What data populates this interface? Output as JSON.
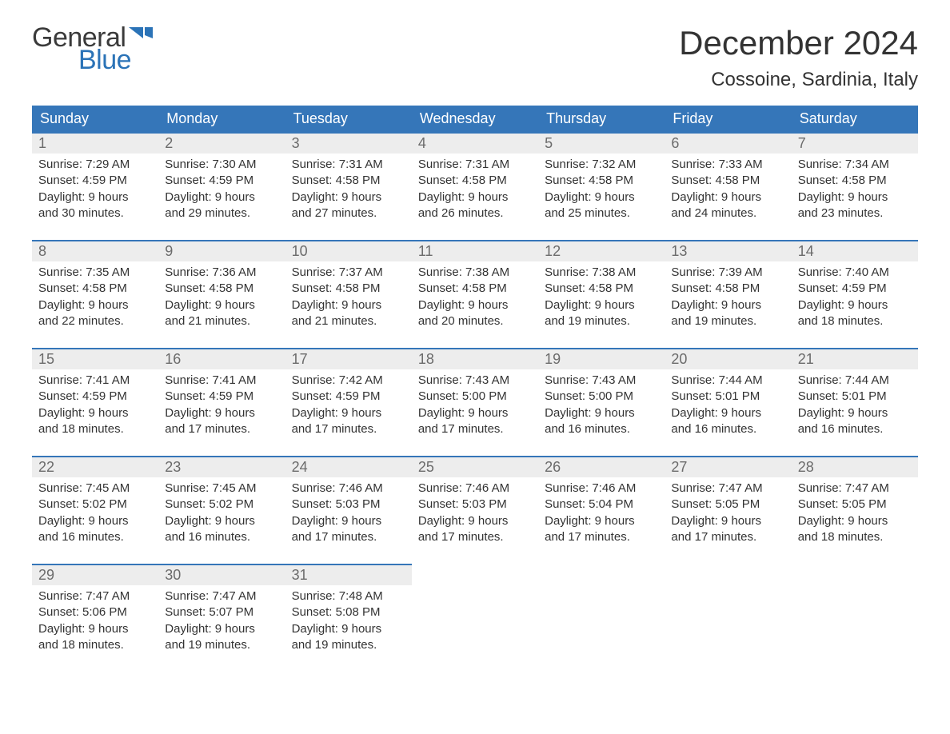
{
  "logo": {
    "word1": "General",
    "word2": "Blue",
    "word1_color": "#3a3a3a",
    "word2_color": "#2b73b7",
    "flag_color": "#2b73b7"
  },
  "title": "December 2024",
  "location": "Cossoine, Sardinia, Italy",
  "colors": {
    "header_bg": "#3576b9",
    "header_text": "#ffffff",
    "daynum_bg": "#ededed",
    "daynum_text": "#6b6b6b",
    "cell_border": "#3576b9",
    "body_text": "#333333",
    "page_bg": "#ffffff"
  },
  "fonts": {
    "title_size_pt": 32,
    "location_size_pt": 18,
    "header_size_pt": 14,
    "daynum_size_pt": 14,
    "body_size_pt": 11
  },
  "day_headers": [
    "Sunday",
    "Monday",
    "Tuesday",
    "Wednesday",
    "Thursday",
    "Friday",
    "Saturday"
  ],
  "weeks": [
    [
      {
        "num": "1",
        "sunrise": "Sunrise: 7:29 AM",
        "sunset": "Sunset: 4:59 PM",
        "d1": "Daylight: 9 hours",
        "d2": "and 30 minutes."
      },
      {
        "num": "2",
        "sunrise": "Sunrise: 7:30 AM",
        "sunset": "Sunset: 4:59 PM",
        "d1": "Daylight: 9 hours",
        "d2": "and 29 minutes."
      },
      {
        "num": "3",
        "sunrise": "Sunrise: 7:31 AM",
        "sunset": "Sunset: 4:58 PM",
        "d1": "Daylight: 9 hours",
        "d2": "and 27 minutes."
      },
      {
        "num": "4",
        "sunrise": "Sunrise: 7:31 AM",
        "sunset": "Sunset: 4:58 PM",
        "d1": "Daylight: 9 hours",
        "d2": "and 26 minutes."
      },
      {
        "num": "5",
        "sunrise": "Sunrise: 7:32 AM",
        "sunset": "Sunset: 4:58 PM",
        "d1": "Daylight: 9 hours",
        "d2": "and 25 minutes."
      },
      {
        "num": "6",
        "sunrise": "Sunrise: 7:33 AM",
        "sunset": "Sunset: 4:58 PM",
        "d1": "Daylight: 9 hours",
        "d2": "and 24 minutes."
      },
      {
        "num": "7",
        "sunrise": "Sunrise: 7:34 AM",
        "sunset": "Sunset: 4:58 PM",
        "d1": "Daylight: 9 hours",
        "d2": "and 23 minutes."
      }
    ],
    [
      {
        "num": "8",
        "sunrise": "Sunrise: 7:35 AM",
        "sunset": "Sunset: 4:58 PM",
        "d1": "Daylight: 9 hours",
        "d2": "and 22 minutes."
      },
      {
        "num": "9",
        "sunrise": "Sunrise: 7:36 AM",
        "sunset": "Sunset: 4:58 PM",
        "d1": "Daylight: 9 hours",
        "d2": "and 21 minutes."
      },
      {
        "num": "10",
        "sunrise": "Sunrise: 7:37 AM",
        "sunset": "Sunset: 4:58 PM",
        "d1": "Daylight: 9 hours",
        "d2": "and 21 minutes."
      },
      {
        "num": "11",
        "sunrise": "Sunrise: 7:38 AM",
        "sunset": "Sunset: 4:58 PM",
        "d1": "Daylight: 9 hours",
        "d2": "and 20 minutes."
      },
      {
        "num": "12",
        "sunrise": "Sunrise: 7:38 AM",
        "sunset": "Sunset: 4:58 PM",
        "d1": "Daylight: 9 hours",
        "d2": "and 19 minutes."
      },
      {
        "num": "13",
        "sunrise": "Sunrise: 7:39 AM",
        "sunset": "Sunset: 4:58 PM",
        "d1": "Daylight: 9 hours",
        "d2": "and 19 minutes."
      },
      {
        "num": "14",
        "sunrise": "Sunrise: 7:40 AM",
        "sunset": "Sunset: 4:59 PM",
        "d1": "Daylight: 9 hours",
        "d2": "and 18 minutes."
      }
    ],
    [
      {
        "num": "15",
        "sunrise": "Sunrise: 7:41 AM",
        "sunset": "Sunset: 4:59 PM",
        "d1": "Daylight: 9 hours",
        "d2": "and 18 minutes."
      },
      {
        "num": "16",
        "sunrise": "Sunrise: 7:41 AM",
        "sunset": "Sunset: 4:59 PM",
        "d1": "Daylight: 9 hours",
        "d2": "and 17 minutes."
      },
      {
        "num": "17",
        "sunrise": "Sunrise: 7:42 AM",
        "sunset": "Sunset: 4:59 PM",
        "d1": "Daylight: 9 hours",
        "d2": "and 17 minutes."
      },
      {
        "num": "18",
        "sunrise": "Sunrise: 7:43 AM",
        "sunset": "Sunset: 5:00 PM",
        "d1": "Daylight: 9 hours",
        "d2": "and 17 minutes."
      },
      {
        "num": "19",
        "sunrise": "Sunrise: 7:43 AM",
        "sunset": "Sunset: 5:00 PM",
        "d1": "Daylight: 9 hours",
        "d2": "and 16 minutes."
      },
      {
        "num": "20",
        "sunrise": "Sunrise: 7:44 AM",
        "sunset": "Sunset: 5:01 PM",
        "d1": "Daylight: 9 hours",
        "d2": "and 16 minutes."
      },
      {
        "num": "21",
        "sunrise": "Sunrise: 7:44 AM",
        "sunset": "Sunset: 5:01 PM",
        "d1": "Daylight: 9 hours",
        "d2": "and 16 minutes."
      }
    ],
    [
      {
        "num": "22",
        "sunrise": "Sunrise: 7:45 AM",
        "sunset": "Sunset: 5:02 PM",
        "d1": "Daylight: 9 hours",
        "d2": "and 16 minutes."
      },
      {
        "num": "23",
        "sunrise": "Sunrise: 7:45 AM",
        "sunset": "Sunset: 5:02 PM",
        "d1": "Daylight: 9 hours",
        "d2": "and 16 minutes."
      },
      {
        "num": "24",
        "sunrise": "Sunrise: 7:46 AM",
        "sunset": "Sunset: 5:03 PM",
        "d1": "Daylight: 9 hours",
        "d2": "and 17 minutes."
      },
      {
        "num": "25",
        "sunrise": "Sunrise: 7:46 AM",
        "sunset": "Sunset: 5:03 PM",
        "d1": "Daylight: 9 hours",
        "d2": "and 17 minutes."
      },
      {
        "num": "26",
        "sunrise": "Sunrise: 7:46 AM",
        "sunset": "Sunset: 5:04 PM",
        "d1": "Daylight: 9 hours",
        "d2": "and 17 minutes."
      },
      {
        "num": "27",
        "sunrise": "Sunrise: 7:47 AM",
        "sunset": "Sunset: 5:05 PM",
        "d1": "Daylight: 9 hours",
        "d2": "and 17 minutes."
      },
      {
        "num": "28",
        "sunrise": "Sunrise: 7:47 AM",
        "sunset": "Sunset: 5:05 PM",
        "d1": "Daylight: 9 hours",
        "d2": "and 18 minutes."
      }
    ],
    [
      {
        "num": "29",
        "sunrise": "Sunrise: 7:47 AM",
        "sunset": "Sunset: 5:06 PM",
        "d1": "Daylight: 9 hours",
        "d2": "and 18 minutes."
      },
      {
        "num": "30",
        "sunrise": "Sunrise: 7:47 AM",
        "sunset": "Sunset: 5:07 PM",
        "d1": "Daylight: 9 hours",
        "d2": "and 19 minutes."
      },
      {
        "num": "31",
        "sunrise": "Sunrise: 7:48 AM",
        "sunset": "Sunset: 5:08 PM",
        "d1": "Daylight: 9 hours",
        "d2": "and 19 minutes."
      },
      null,
      null,
      null,
      null
    ]
  ]
}
